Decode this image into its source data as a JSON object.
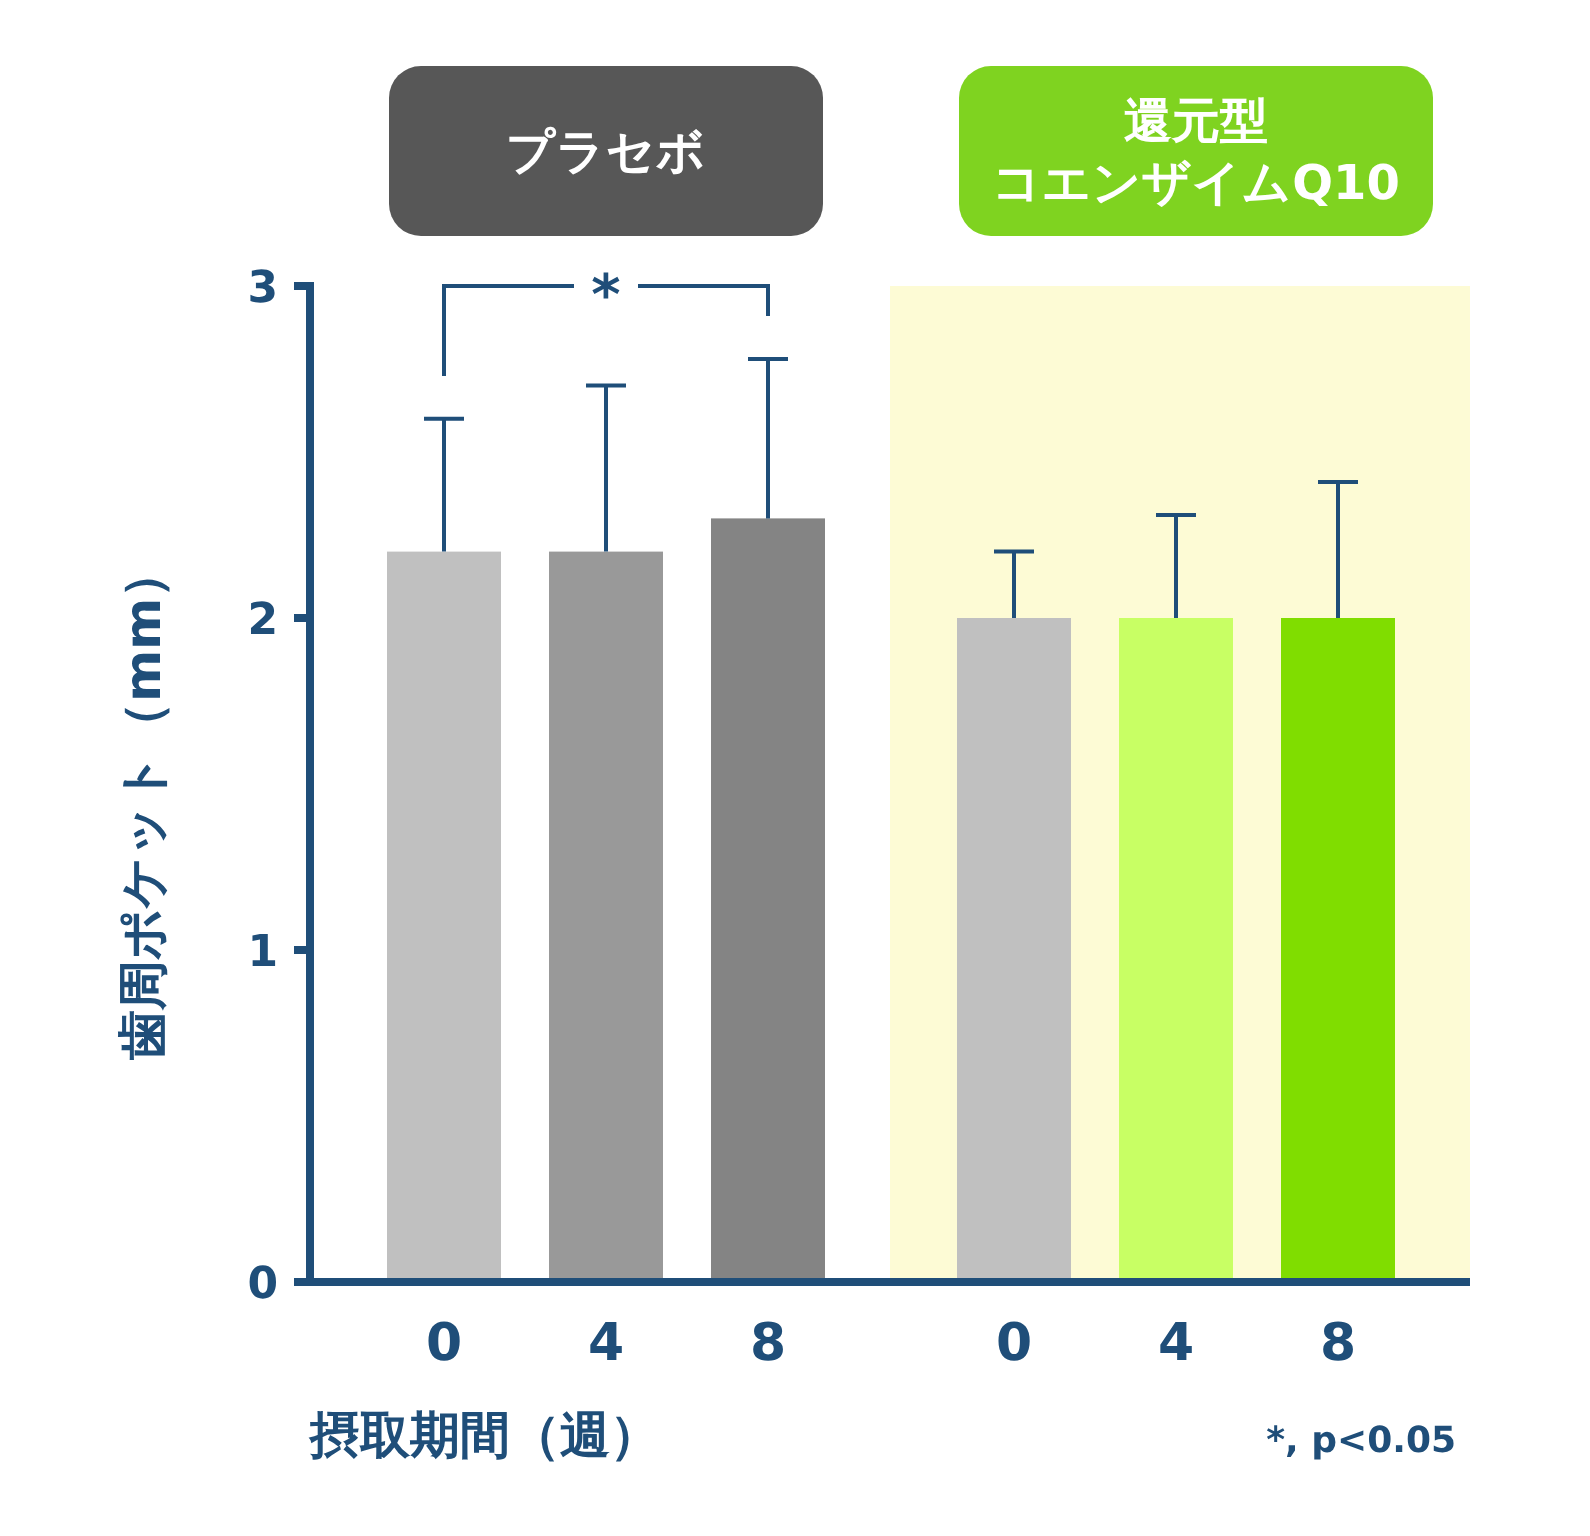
{
  "chart_data": [
    {
      "type": "bar",
      "title": "プラセボ",
      "xlabel": "摂取期間（週）",
      "ylabel": "歯周ポケット（mm）",
      "categories": [
        "0",
        "4",
        "8"
      ],
      "values": [
        2.2,
        2.2,
        2.3
      ],
      "colors": [
        "#c0c0c0",
        "#999999",
        "#848484"
      ],
      "errors": [
        [
          2.2,
          2.6
        ],
        [
          2.2,
          2.7
        ],
        [
          2.3,
          2.78
        ]
      ],
      "ylim": [
        0,
        3
      ],
      "yticks": [
        0,
        1,
        2,
        3
      ],
      "annotations": [
        "*"
      ]
    },
    {
      "type": "bar",
      "title": "還元型コエンザイムQ10",
      "categories": [
        "0",
        "4",
        "8"
      ],
      "values": [
        2.0,
        2.0,
        2.0
      ],
      "colors": [
        "#c0c0c0",
        "#c8ff64",
        "#80dd00"
      ],
      "errors": [
        [
          2.0,
          2.2
        ],
        [
          2.0,
          2.31
        ],
        [
          2.0,
          2.41
        ]
      ],
      "ylim": [
        0,
        3
      ],
      "tick_labels": "x",
      "annotations": [
        "*, p<0.05"
      ]
    }
  ]
}
